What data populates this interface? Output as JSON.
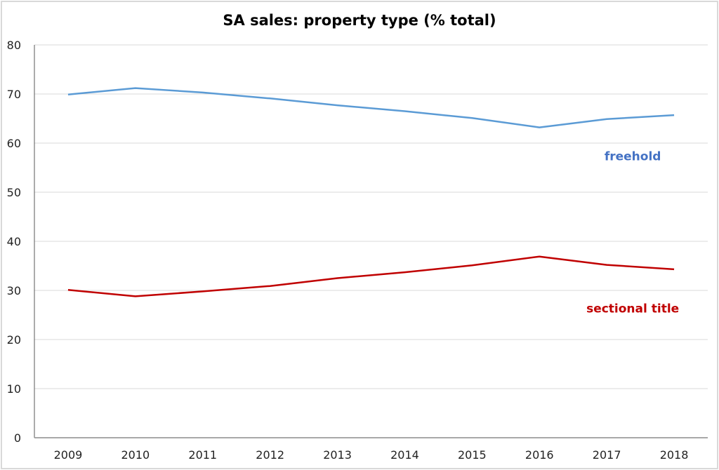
{
  "chart_data": {
    "type": "line",
    "title": "SA sales: property type (% total)",
    "xlabel": "",
    "ylabel": "",
    "categories": [
      "2009",
      "2010",
      "2011",
      "2012",
      "2013",
      "2014",
      "2015",
      "2016",
      "2017",
      "2018"
    ],
    "ylim": [
      0,
      80
    ],
    "yticks": [
      0,
      10,
      20,
      30,
      40,
      50,
      60,
      70,
      80
    ],
    "grid": true,
    "legend": "none (inline labels)",
    "series": [
      {
        "name": "freehold",
        "color": "#5b9bd5",
        "label_color": "#4472c4",
        "values": [
          69.9,
          71.2,
          70.3,
          69.1,
          67.7,
          66.5,
          65.1,
          63.2,
          64.9,
          65.7
        ]
      },
      {
        "name": "sectional title",
        "color": "#c00000",
        "label_color": "#c00000",
        "values": [
          30.1,
          28.8,
          29.8,
          30.9,
          32.5,
          33.7,
          35.1,
          36.9,
          35.2,
          34.3
        ]
      }
    ],
    "annotations": [
      {
        "text": "freehold",
        "series": "freehold",
        "anchor_category": "2017",
        "anchor_value": 56.5
      },
      {
        "text": "sectional title",
        "series": "sectional title",
        "anchor_category": "2017",
        "anchor_value": 25.5
      }
    ]
  }
}
